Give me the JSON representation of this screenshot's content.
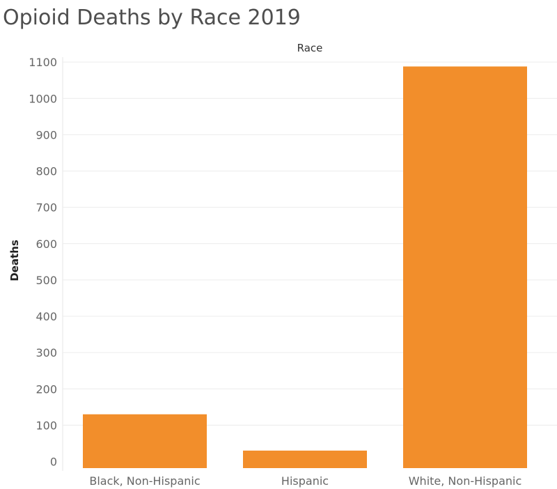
{
  "title": "Opioid Deaths by Race 2019",
  "chart_data": {
    "type": "bar",
    "title": "Opioid Deaths by Race 2019",
    "column_header": "Race",
    "xlabel": "Race",
    "ylabel": "Deaths",
    "categories": [
      "Black, Non-Hispanic",
      "Hispanic",
      "White, Non-Hispanic"
    ],
    "values": [
      130,
      30,
      1088
    ],
    "yticks": [
      0,
      100,
      200,
      300,
      400,
      500,
      600,
      700,
      800,
      900,
      1000,
      1100
    ],
    "ylim": [
      -20,
      1130
    ],
    "grid": true,
    "legend": "none",
    "bar_color": "#f28e2b"
  }
}
